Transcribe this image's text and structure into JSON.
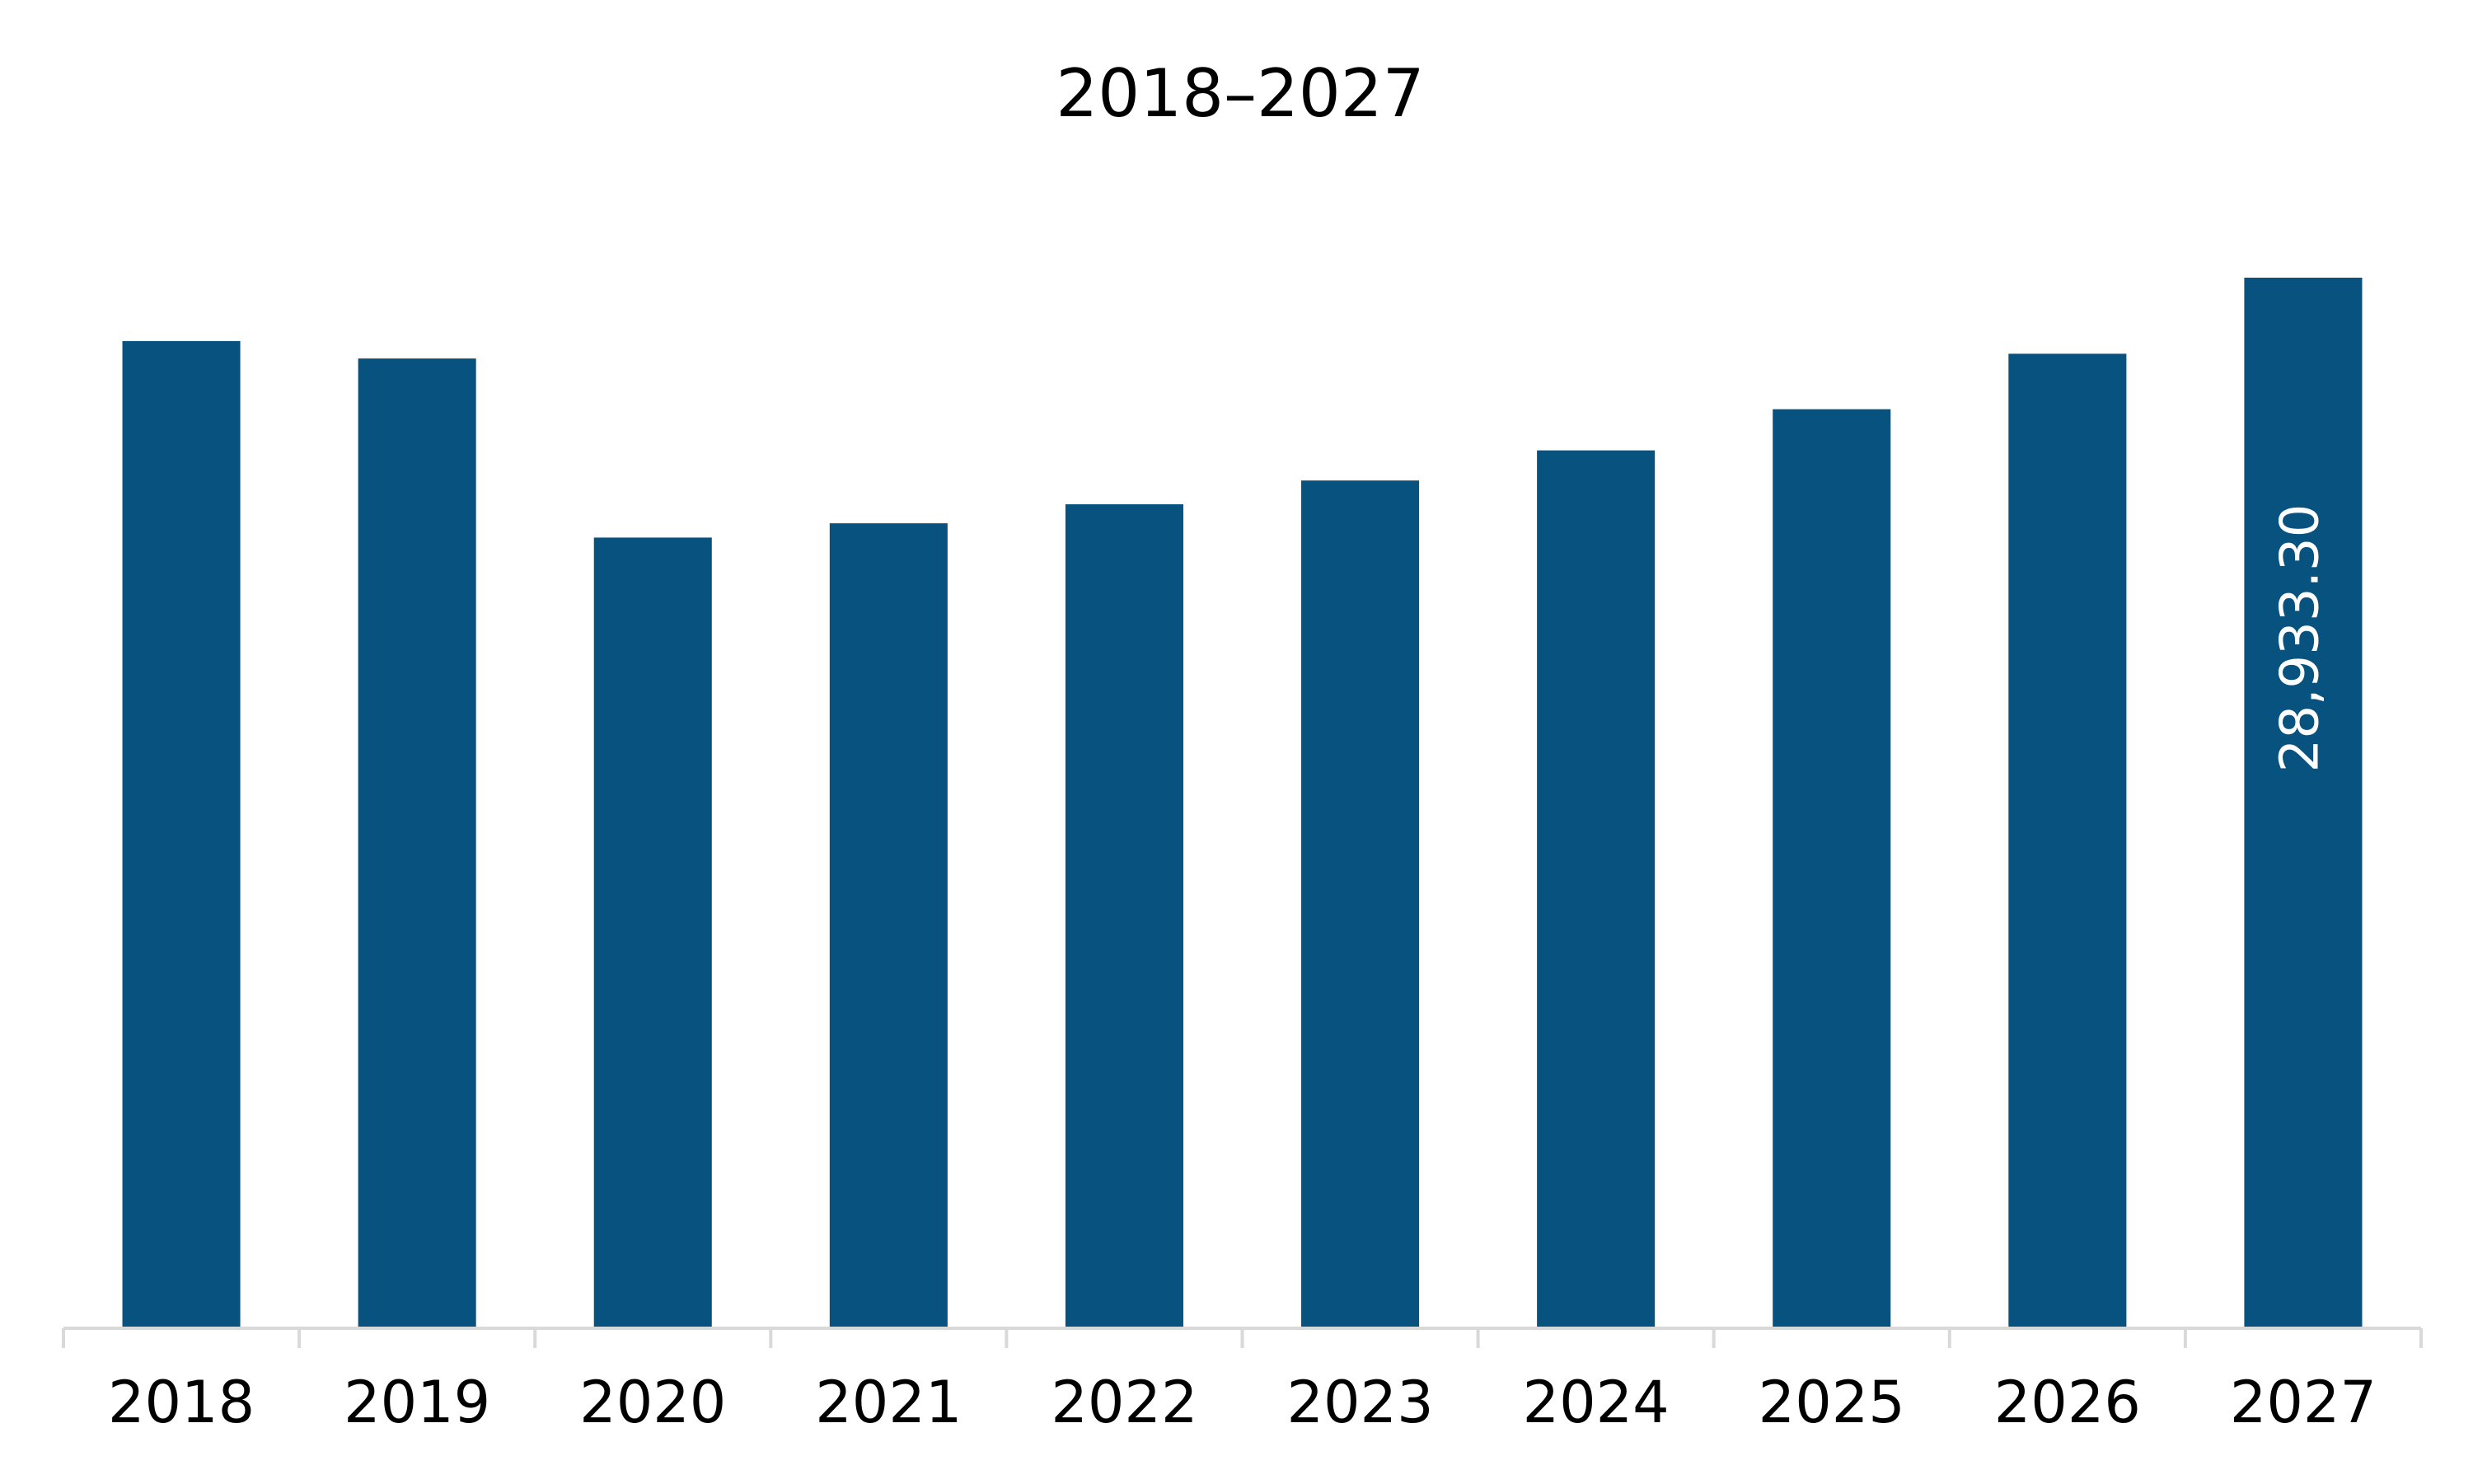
{
  "chart_data": {
    "type": "bar",
    "title": "2018–2027",
    "categories": [
      "2018",
      "2019",
      "2020",
      "2021",
      "2022",
      "2023",
      "2024",
      "2025",
      "2026",
      "2027"
    ],
    "values": [
      27188,
      26708,
      21776,
      22169,
      22693,
      23348,
      24177,
      25311,
      26839,
      28933.3
    ],
    "value_labels": [
      null,
      null,
      null,
      null,
      null,
      null,
      null,
      null,
      null,
      "28,933.30"
    ],
    "color": "#08527f"
  }
}
